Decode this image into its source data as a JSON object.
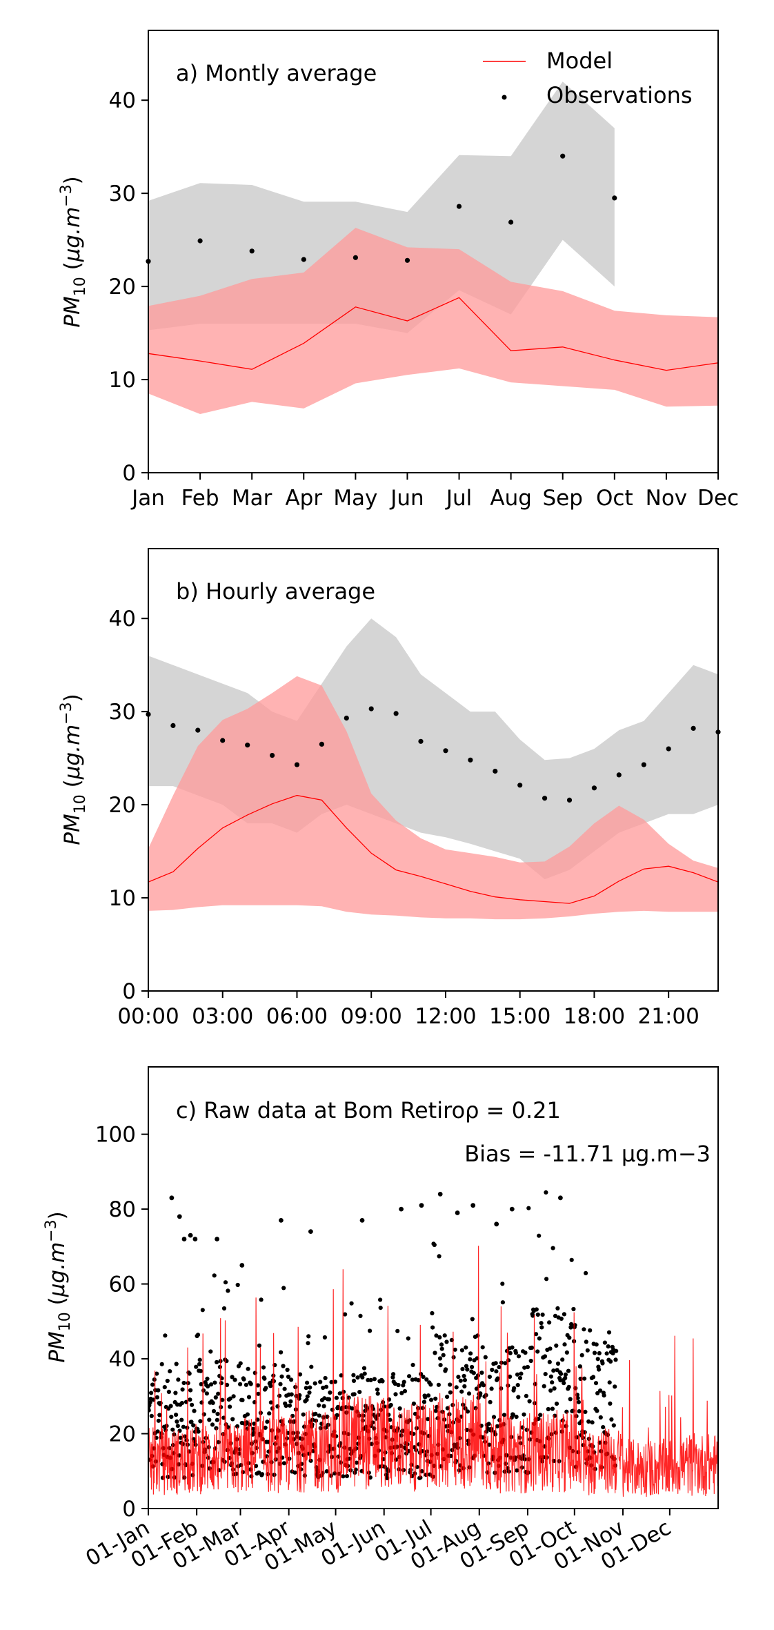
{
  "figure": {
    "colors": {
      "model": "#ff0000",
      "model_band": "#ff9999",
      "obs": "#000000",
      "obs_band": "#b3b3b3"
    }
  },
  "legend": {
    "model": "Model",
    "observations": "Observations"
  },
  "chart_data": [
    {
      "type": "line",
      "panel": "a",
      "label": "a) Montly average",
      "ylabel": "PM10 (μg.m−3)",
      "categories": [
        "Jan",
        "Feb",
        "Mar",
        "Apr",
        "May",
        "Jun",
        "Jul",
        "Aug",
        "Sep",
        "Oct",
        "Nov",
        "Dec"
      ],
      "ylim": [
        0,
        47.5
      ],
      "yticks": [
        0,
        10,
        20,
        30,
        40
      ],
      "legend_position": "top-right",
      "series": [
        {
          "name": "Model",
          "values": [
            12.8,
            12.0,
            11.1,
            13.9,
            17.8,
            16.3,
            18.8,
            13.1,
            13.5,
            12.1,
            11.0,
            11.8
          ],
          "band_low": [
            8.5,
            6.3,
            7.6,
            6.9,
            9.6,
            10.5,
            11.2,
            9.7,
            9.3,
            8.9,
            7.1,
            7.2
          ],
          "band_high": [
            17.9,
            19.0,
            20.8,
            21.5,
            26.3,
            24.2,
            24.0,
            20.5,
            19.5,
            17.4,
            16.9,
            16.7
          ]
        },
        {
          "name": "Observations",
          "values": [
            22.7,
            24.9,
            23.8,
            22.9,
            23.1,
            22.8,
            28.6,
            26.9,
            34.0,
            29.5,
            null,
            null
          ],
          "band_low": [
            15.3,
            16.0,
            16.0,
            16.0,
            16.0,
            15.0,
            19.6,
            17.0,
            25.0,
            20.0,
            null,
            null
          ],
          "band_high": [
            29.2,
            31.1,
            30.9,
            29.1,
            29.1,
            28.0,
            34.1,
            34.0,
            42.0,
            37.0,
            null,
            null
          ]
        }
      ]
    },
    {
      "type": "line",
      "panel": "b",
      "label": "b) Hourly average",
      "ylabel": "PM10 (μg.m−3)",
      "x": [
        0,
        1,
        2,
        3,
        4,
        5,
        6,
        7,
        8,
        9,
        10,
        11,
        12,
        13,
        14,
        15,
        16,
        17,
        18,
        19,
        20,
        21,
        22,
        23
      ],
      "xticks": [
        "00:00",
        "03:00",
        "06:00",
        "09:00",
        "12:00",
        "15:00",
        "18:00",
        "21:00"
      ],
      "ylim": [
        0,
        47.5
      ],
      "yticks": [
        0,
        10,
        20,
        30,
        40
      ],
      "series": [
        {
          "name": "Model",
          "values": [
            11.7,
            12.8,
            15.3,
            17.5,
            18.9,
            20.1,
            21.0,
            20.5,
            17.5,
            14.8,
            13.0,
            12.3,
            11.5,
            10.7,
            10.1,
            9.8,
            9.6,
            9.4,
            10.2,
            11.8,
            13.1,
            13.4,
            12.7,
            11.7
          ],
          "band_low": [
            8.6,
            8.7,
            9.0,
            9.2,
            9.2,
            9.2,
            9.2,
            9.1,
            8.5,
            8.2,
            8.1,
            7.9,
            7.8,
            7.8,
            7.7,
            7.7,
            7.8,
            8.0,
            8.3,
            8.5,
            8.6,
            8.5,
            8.5,
            8.5
          ],
          "band_high": [
            15.3,
            21.0,
            26.3,
            29.1,
            30.3,
            32.0,
            33.8,
            32.8,
            27.9,
            21.2,
            18.3,
            16.4,
            15.2,
            14.8,
            14.4,
            13.8,
            13.9,
            15.5,
            18.0,
            19.9,
            18.4,
            15.8,
            14.0,
            13.2
          ]
        },
        {
          "name": "Observations",
          "values": [
            29.7,
            28.5,
            28.0,
            26.9,
            26.4,
            25.3,
            24.3,
            26.5,
            29.3,
            30.3,
            29.8,
            26.8,
            25.8,
            24.8,
            23.6,
            22.1,
            20.7,
            20.5,
            21.8,
            23.2,
            24.3,
            26.0,
            28.2,
            27.8
          ],
          "band_low": [
            22.0,
            22.0,
            21.0,
            20.0,
            18.0,
            18.0,
            17.0,
            19.0,
            20.0,
            19.0,
            18.0,
            17.0,
            16.5,
            15.8,
            15.0,
            14.2,
            12.0,
            13.0,
            15.0,
            17.0,
            18.0,
            19.0,
            19.0,
            20.0
          ],
          "band_high": [
            36.0,
            35.0,
            34.0,
            33.0,
            32.0,
            30.0,
            29.0,
            33.0,
            37.0,
            40.0,
            38.0,
            34.0,
            32.0,
            30.0,
            30.0,
            27.0,
            24.8,
            25.0,
            26.0,
            28.0,
            29.0,
            32.0,
            35.0,
            34.0
          ]
        }
      ]
    },
    {
      "type": "scatter",
      "panel": "c",
      "label": "c) Raw data at Bom Retiro",
      "annotation_r": "ρ = 0.21",
      "annotation_bias": "Bias = -11.71 μg.m−3",
      "ylabel": "PM10 (μg.m−3)",
      "x_label_dates": [
        "01-Jan",
        "01-Feb",
        "01-Mar",
        "01-Apr",
        "01-May",
        "01-Jun",
        "01-Jul",
        "01-Aug",
        "01-Sep",
        "01-Oct",
        "01-Nov",
        "01-Dec"
      ],
      "x_tick_day_of_year": [
        0,
        31,
        59,
        90,
        120,
        151,
        181,
        212,
        243,
        273,
        304,
        334
      ],
      "xlim_day_of_year": [
        0,
        365
      ],
      "ylim": [
        0,
        118
      ],
      "yticks": [
        0,
        20,
        40,
        60,
        80,
        100
      ],
      "series": [
        {
          "name": "Model",
          "style": "hourly line, approximate envelope by month",
          "month_median": [
            14,
            15,
            16,
            17,
            20,
            18,
            20,
            16,
            17,
            14,
            12,
            13
          ]
        },
        {
          "name": "Observations",
          "style": "hourly points, last observation near end of October",
          "month_median": [
            23,
            25,
            24,
            23,
            23,
            23,
            29,
            27,
            34,
            30,
            null,
            null
          ],
          "notable_points": [
            [
              15,
              83
            ],
            [
              20,
              78
            ],
            [
              23,
              72
            ],
            [
              27,
              73
            ],
            [
              30,
              72
            ],
            [
              44,
              72
            ],
            [
              60,
              65
            ],
            [
              85,
              77
            ],
            [
              104,
              74
            ],
            [
              137,
              77
            ],
            [
              162,
              80
            ],
            [
              175,
              81
            ],
            [
              187,
              84
            ],
            [
              198,
              79
            ],
            [
              208,
              81
            ],
            [
              223,
              76
            ],
            [
              233,
              80
            ],
            [
              264,
              83
            ]
          ]
        }
      ]
    }
  ]
}
